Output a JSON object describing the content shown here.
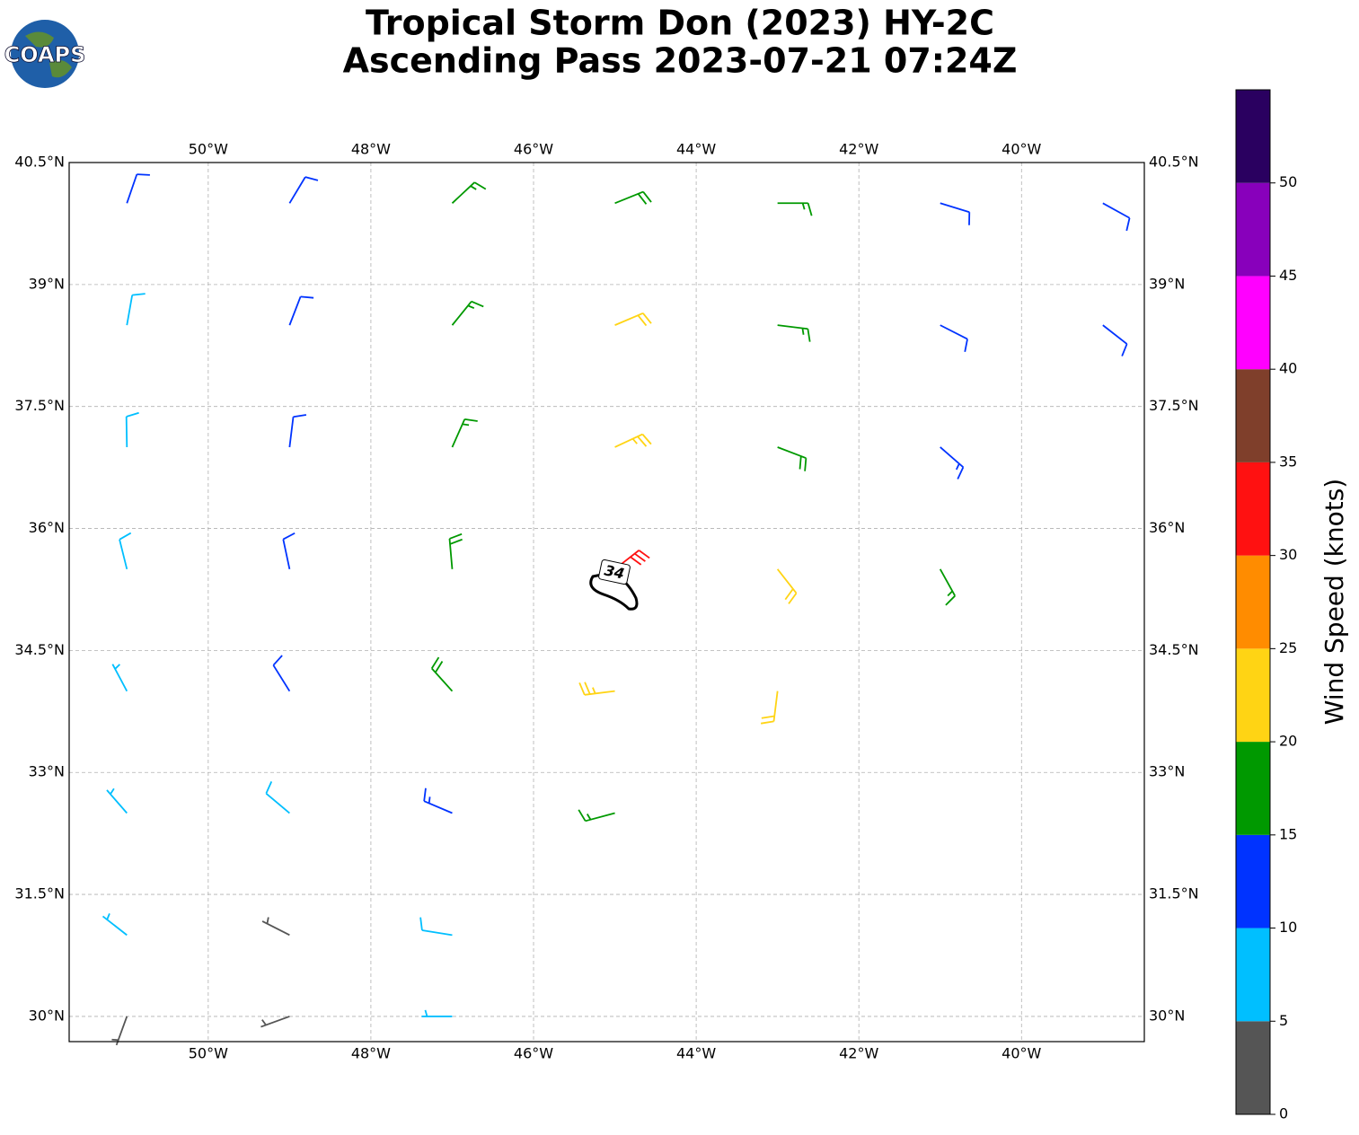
{
  "chart_data": {
    "type": "wind_barbs",
    "title": "Tropical Storm Don (2023) HY-2C",
    "subtitle": "Ascending Pass 2023-07-21 07:24Z",
    "logo": "COAPS",
    "contour_label": "34",
    "xlim": [
      -51.71,
      -38.49
    ],
    "ylim": [
      29.69,
      40.5
    ],
    "xticks": [
      {
        "value": -50,
        "label": "50°W"
      },
      {
        "value": -48,
        "label": "48°W"
      },
      {
        "value": -46,
        "label": "46°W"
      },
      {
        "value": -44,
        "label": "44°W"
      },
      {
        "value": -42,
        "label": "42°W"
      },
      {
        "value": -40,
        "label": "40°W"
      }
    ],
    "yticks": [
      {
        "value": 40.5,
        "label": "40.5°N"
      },
      {
        "value": 39,
        "label": "39°N"
      },
      {
        "value": 37.5,
        "label": "37.5°N"
      },
      {
        "value": 36,
        "label": "36°N"
      },
      {
        "value": 34.5,
        "label": "34.5°N"
      },
      {
        "value": 33,
        "label": "33°N"
      },
      {
        "value": 31.5,
        "label": "31.5°N"
      },
      {
        "value": 30,
        "label": "30°N"
      }
    ],
    "grid": true,
    "colorbar": {
      "label": "Wind Speed (knots)",
      "bounds": [
        0,
        5,
        10,
        15,
        20,
        25,
        30,
        35,
        40,
        45,
        50,
        55
      ],
      "colors": [
        "#555555",
        "#00bfff",
        "#0033ff",
        "#009900",
        "#ffd414",
        "#ff8c00",
        "#ff1111",
        "#7f3f2b",
        "#ff00ff",
        "#8800bb",
        "#2a0060"
      ],
      "ticks": [
        0,
        5,
        10,
        15,
        20,
        25,
        30,
        35,
        40,
        45,
        50
      ]
    },
    "barbs": {
      "lon": [
        -51,
        -49,
        -47,
        -45,
        -43,
        -41,
        -39,
        -51,
        -49,
        -47,
        -45,
        -43,
        -41,
        -39,
        -51,
        -49,
        -47,
        -45,
        -43,
        -41,
        -51,
        -49,
        -47,
        -45,
        -43,
        -41,
        -51,
        -49,
        -47,
        -45,
        -43,
        -51,
        -49,
        -47,
        -45,
        -51,
        -49,
        -47,
        -51,
        -49,
        -47
      ],
      "lat": [
        40,
        40,
        40,
        40,
        40,
        40,
        40,
        38.5,
        38.5,
        38.5,
        38.5,
        38.5,
        38.5,
        38.5,
        37,
        37,
        37,
        37,
        37,
        37,
        35.5,
        35.5,
        35.5,
        35.5,
        35.5,
        35.5,
        34,
        34,
        34,
        34,
        34,
        32.5,
        32.5,
        32.5,
        32.5,
        31,
        31,
        31,
        30,
        30,
        30
      ],
      "speed": [
        10,
        12,
        17,
        18,
        16,
        12,
        11,
        8,
        12,
        17,
        22,
        17,
        12,
        10,
        9,
        12,
        17,
        23,
        18,
        13,
        8,
        12,
        18,
        32,
        22,
        15,
        7,
        12,
        19,
        24,
        20,
        7,
        8,
        13,
        17,
        7,
        4,
        8,
        3,
        3,
        7
      ],
      "direction": [
        19,
        31,
        47,
        68,
        90,
        107,
        119,
        10,
        21,
        39,
        67,
        97,
        117,
        128,
        359,
        7,
        24,
        65,
        111,
        131,
        346,
        348,
        355,
        52,
        142,
        151,
        332,
        328,
        318,
        263,
        187,
        319,
        310,
        293,
        255,
        308,
        297,
        279,
        200,
        250,
        270
      ]
    }
  }
}
